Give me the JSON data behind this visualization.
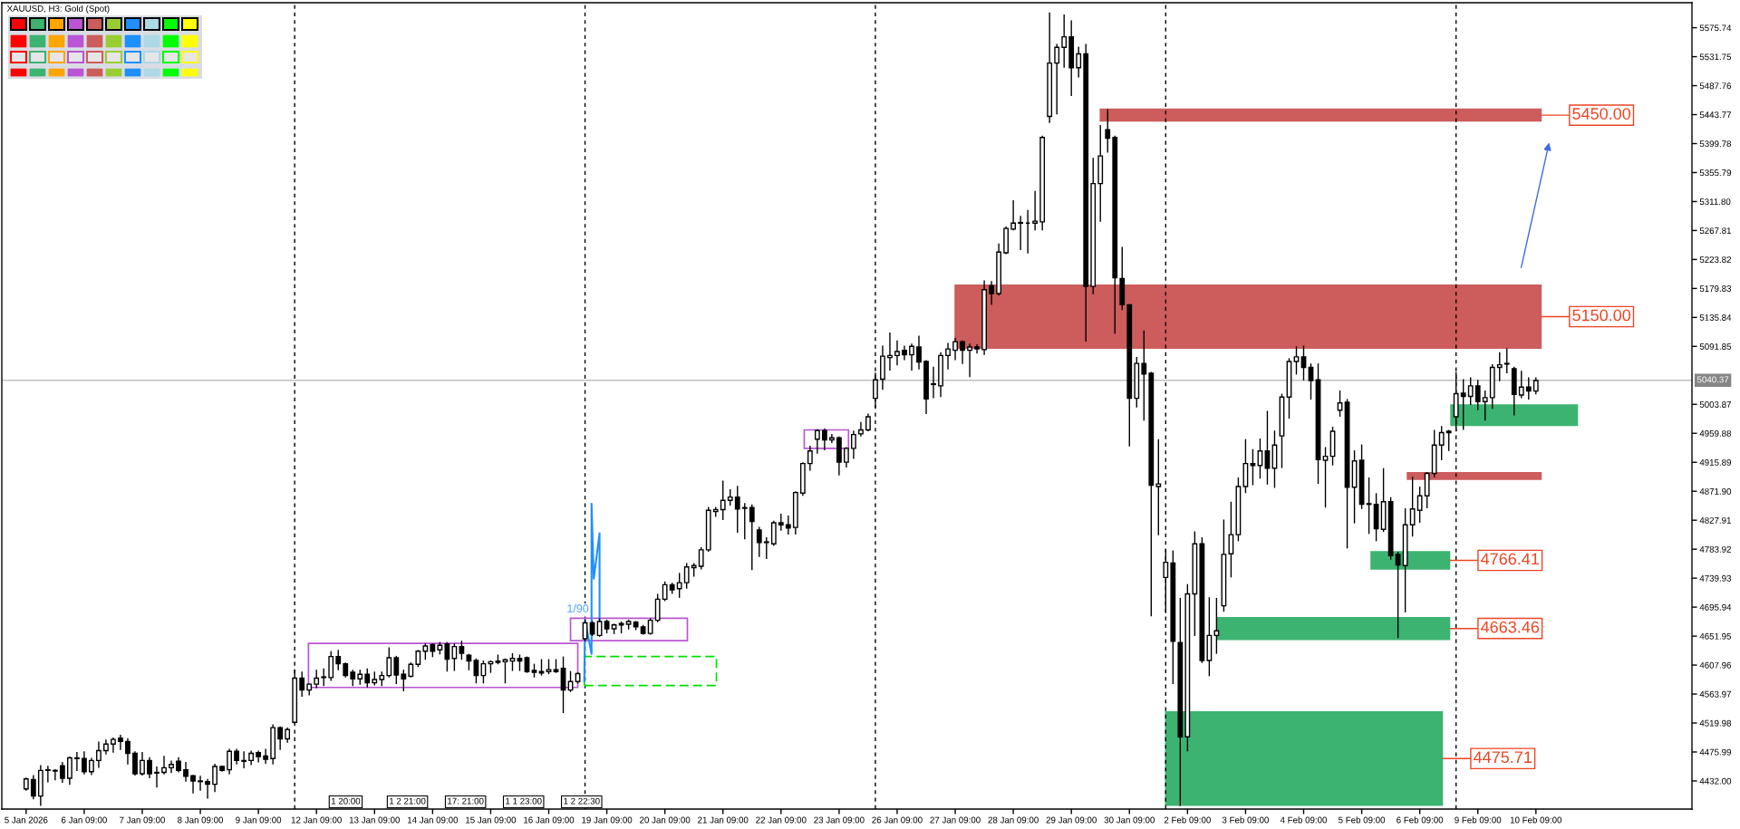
{
  "chart_data": {
    "type": "candlestick",
    "title": "XAUUSD, H3: Gold (Spot)",
    "categories": [
      "5 Jan 2026",
      null,
      null,
      null,
      null,
      null,
      null,
      null,
      "6 Jan 09:00",
      null,
      null,
      null,
      null,
      null,
      null,
      null,
      "7 Jan 09:00",
      null,
      null,
      null,
      null,
      null,
      null,
      null,
      "8 Jan 09:00",
      null,
      null,
      null,
      null,
      null,
      null,
      null,
      "9 Jan 09:00",
      null,
      null,
      null,
      null,
      null,
      null,
      null,
      "12 Jan 09:00",
      null,
      null,
      null,
      null,
      null,
      null,
      null,
      "13 Jan 09:00",
      null,
      null,
      null,
      null,
      null,
      null,
      null,
      "14 Jan 09:00",
      null,
      null,
      null,
      null,
      null,
      null,
      null,
      "15 Jan 09:00",
      null,
      null,
      null,
      null,
      null,
      null,
      null,
      "16 Jan 09:00",
      null,
      null,
      null,
      null,
      null,
      null,
      null,
      "19 Jan 09:00",
      null,
      null,
      null,
      null,
      null,
      null,
      null,
      "20 Jan 09:00",
      null,
      null,
      null,
      null,
      null,
      null,
      null,
      "21 Jan 09:00",
      null,
      null,
      null,
      null,
      null,
      null,
      null,
      "22 Jan 09:00",
      null,
      null,
      null,
      null,
      null,
      null,
      null,
      "23 Jan 09:00",
      null,
      null,
      null,
      null,
      null,
      null,
      null,
      "26 Jan 09:00",
      null,
      null,
      null,
      null,
      null,
      null,
      null,
      "27 Jan 09:00",
      null,
      null,
      null,
      null,
      null,
      null,
      null,
      "28 Jan 09:00",
      null,
      null,
      null,
      null,
      null,
      null,
      null,
      "29 Jan 09:00",
      null,
      null,
      null,
      null,
      null,
      null,
      null,
      "30 Jan 09:00",
      null,
      null,
      null,
      null,
      null,
      null,
      null,
      "2 Feb 09:00",
      null,
      null,
      null,
      null,
      null,
      null,
      null,
      "3 Feb 09:00",
      null,
      null,
      null,
      null,
      null,
      null,
      null,
      "4 Feb 09:00",
      null,
      null,
      null,
      null,
      null,
      null,
      null,
      "5 Feb 09:00",
      null,
      null,
      null,
      null,
      null,
      null,
      null,
      "6 Feb 09:00",
      null,
      null,
      null,
      null,
      null,
      null,
      null,
      "9 Feb 09:00",
      null,
      null,
      null,
      null,
      null,
      null,
      null,
      "10 Feb 09:00",
      null,
      null,
      null,
      null,
      null,
      null,
      null,
      null,
      null,
      null,
      null,
      null,
      null,
      null,
      null,
      null,
      null,
      null,
      null,
      null,
      null
    ],
    "ohlc": [
      [
        4420,
        4436,
        4418,
        4435
      ],
      [
        4434,
        4440,
        4405,
        4409
      ],
      [
        4409,
        4455,
        4395,
        4448
      ],
      [
        4448,
        4454,
        4431,
        4449
      ],
      [
        4448,
        4449,
        4434,
        4447
      ],
      [
        4455,
        4460,
        4430,
        4436
      ],
      [
        4436,
        4468,
        4427,
        4467
      ],
      [
        4467,
        4475,
        4448,
        4466
      ],
      [
        4466,
        4476,
        4443,
        4446
      ],
      [
        4446,
        4466,
        4442,
        4463
      ],
      [
        4463,
        4491,
        4453,
        4478
      ],
      [
        4478,
        4494,
        4473,
        4488
      ],
      [
        4488,
        4497,
        4476,
        4495
      ],
      [
        4497,
        4501,
        4480,
        4492
      ],
      [
        4492,
        4496,
        4458,
        4474
      ],
      [
        4474,
        4476,
        4441,
        4443
      ],
      [
        4443,
        4475,
        4441,
        4463
      ],
      [
        4463,
        4467,
        4437,
        4443
      ],
      [
        4445,
        4453,
        4423,
        4444
      ],
      [
        4445,
        4469,
        4443,
        4452
      ],
      [
        4452,
        4462,
        4445,
        4457
      ],
      [
        4462,
        4467,
        4446,
        4448
      ],
      [
        4449,
        4460,
        4432,
        4439
      ],
      [
        4440,
        4440,
        4414,
        4432
      ],
      [
        4432,
        4439,
        4418,
        4431
      ],
      [
        4431,
        4434,
        4406,
        4427
      ],
      [
        4427,
        4457,
        4416,
        4454
      ],
      [
        4454,
        4454,
        4447,
        4448
      ],
      [
        4449,
        4480,
        4443,
        4477
      ],
      [
        4477,
        4480,
        4458,
        4463
      ],
      [
        4463,
        4476,
        4452,
        4462
      ],
      [
        4463,
        4477,
        4457,
        4474
      ],
      [
        4475,
        4477,
        4461,
        4469
      ],
      [
        4470,
        4480,
        4459,
        4465
      ],
      [
        4466,
        4517,
        4458,
        4513
      ],
      [
        4513,
        4514,
        4480,
        4496
      ],
      [
        4496,
        4512,
        4491,
        4510
      ],
      [
        4521,
        4600,
        4520,
        4588
      ],
      [
        4588,
        4597,
        4561,
        4570
      ],
      [
        4570,
        4579,
        4563,
        4579
      ],
      [
        4579,
        4600,
        4574,
        4588
      ],
      [
        4590,
        4602,
        4577,
        4589
      ],
      [
        4589,
        4628,
        4585,
        4621
      ],
      [
        4621,
        4630,
        4601,
        4610
      ],
      [
        4610,
        4611,
        4590,
        4592
      ],
      [
        4597,
        4600,
        4577,
        4587
      ],
      [
        4587,
        4600,
        4579,
        4594
      ],
      [
        4594,
        4602,
        4575,
        4581
      ],
      [
        4581,
        4597,
        4578,
        4586
      ],
      [
        4586,
        4597,
        4577,
        4592
      ],
      [
        4592,
        4634,
        4590,
        4619
      ],
      [
        4619,
        4621,
        4580,
        4593
      ],
      [
        4594,
        4600,
        4569,
        4587
      ],
      [
        4591,
        4611,
        4590,
        4609
      ],
      [
        4609,
        4630,
        4606,
        4629
      ],
      [
        4629,
        4640,
        4617,
        4637
      ],
      [
        4639,
        4640,
        4621,
        4629
      ],
      [
        4631,
        4642,
        4625,
        4638
      ],
      [
        4640,
        4642,
        4599,
        4617
      ],
      [
        4618,
        4640,
        4600,
        4636
      ],
      [
        4636,
        4644,
        4617,
        4626
      ],
      [
        4623,
        4624,
        4601,
        4614
      ],
      [
        4615,
        4617,
        4581,
        4592
      ],
      [
        4592,
        4614,
        4581,
        4610
      ],
      [
        4610,
        4614,
        4597,
        4613
      ],
      [
        4614,
        4623,
        4610,
        4612
      ],
      [
        4613,
        4617,
        4581,
        4616
      ],
      [
        4614,
        4625,
        4600,
        4618
      ],
      [
        4618,
        4623,
        4600,
        4614
      ],
      [
        4619,
        4620,
        4597,
        4598
      ],
      [
        4600,
        4609,
        4590,
        4597
      ],
      [
        4598,
        4616,
        4593,
        4596
      ],
      [
        4598,
        4616,
        4595,
        4601
      ],
      [
        4601,
        4616,
        4597,
        4598
      ],
      [
        4603,
        4620,
        4536,
        4570
      ],
      [
        4570,
        4598,
        4568,
        4583
      ],
      [
        4583,
        4596,
        4581,
        4595
      ],
      [
        4648,
        4676,
        4645,
        4672
      ],
      [
        4672,
        4674,
        4653,
        4655
      ],
      [
        4653,
        4678,
        4652,
        4674
      ],
      [
        4674,
        4676,
        4657,
        4663
      ],
      [
        4663,
        4670,
        4656,
        4669
      ],
      [
        4669,
        4673,
        4657,
        4671
      ],
      [
        4670,
        4676,
        4663,
        4674
      ],
      [
        4673,
        4674,
        4662,
        4666
      ],
      [
        4666,
        4668,
        4655,
        4656
      ],
      [
        4656,
        4678,
        4655,
        4676
      ],
      [
        4676,
        4715,
        4674,
        4708
      ],
      [
        4708,
        4734,
        4706,
        4730
      ],
      [
        4730,
        4732,
        4717,
        4722
      ],
      [
        4724,
        4747,
        4711,
        4733
      ],
      [
        4733,
        4762,
        4725,
        4757
      ],
      [
        4756,
        4762,
        4743,
        4759
      ],
      [
        4758,
        4786,
        4754,
        4783
      ],
      [
        4783,
        4847,
        4781,
        4843
      ],
      [
        4841,
        4847,
        4834,
        4844
      ],
      [
        4844,
        4887,
        4829,
        4858
      ],
      [
        4858,
        4874,
        4851,
        4863
      ],
      [
        4863,
        4879,
        4810,
        4845
      ],
      [
        4847,
        4853,
        4800,
        4846
      ],
      [
        4847,
        4851,
        4753,
        4826
      ],
      [
        4813,
        4817,
        4773,
        4794
      ],
      [
        4794,
        4801,
        4770,
        4795
      ],
      [
        4792,
        4826,
        4790,
        4824
      ],
      [
        4824,
        4837,
        4813,
        4821
      ],
      [
        4821,
        4834,
        4807,
        4816
      ],
      [
        4817,
        4871,
        4807,
        4870
      ],
      [
        4869,
        4915,
        4866,
        4914
      ],
      [
        4914,
        4940,
        4904,
        4933
      ],
      [
        4951,
        4965,
        4930,
        4964
      ],
      [
        4964,
        4966,
        4935,
        4950
      ],
      [
        4950,
        4958,
        4946,
        4953
      ],
      [
        4953,
        4954,
        4897,
        4916
      ],
      [
        4916,
        4938,
        4909,
        4937
      ],
      [
        4937,
        4963,
        4922,
        4958
      ],
      [
        4959,
        4976,
        4956,
        4965
      ],
      [
        4965,
        4989,
        4964,
        4985
      ],
      [
        5013,
        5051,
        5000,
        5041
      ],
      [
        5042,
        5092,
        5027,
        5077
      ],
      [
        5075,
        5112,
        5056,
        5078
      ],
      [
        5078,
        5100,
        5064,
        5084
      ],
      [
        5086,
        5092,
        5072,
        5079
      ],
      [
        5079,
        5095,
        5056,
        5092
      ],
      [
        5091,
        5107,
        5058,
        5068
      ],
      [
        5069,
        5070,
        4990,
        5012
      ],
      [
        5035,
        5060,
        5014,
        5034
      ],
      [
        5032,
        5082,
        5016,
        5078
      ],
      [
        5078,
        5096,
        5058,
        5088
      ],
      [
        5086,
        5104,
        5072,
        5099
      ],
      [
        5099,
        5100,
        5066,
        5086
      ],
      [
        5086,
        5095,
        5046,
        5091
      ],
      [
        5091,
        5094,
        5082,
        5088
      ],
      [
        5087,
        5191,
        5080,
        5178
      ],
      [
        5184,
        5190,
        5156,
        5172
      ],
      [
        5172,
        5247,
        5170,
        5235
      ],
      [
        5234,
        5273,
        5233,
        5271
      ],
      [
        5270,
        5313,
        5269,
        5279
      ],
      [
        5279,
        5289,
        5239,
        5280
      ],
      [
        5279,
        5298,
        5234,
        5279
      ],
      [
        5279,
        5327,
        5269,
        5282
      ],
      [
        5281,
        5411,
        5269,
        5409
      ],
      [
        5441,
        5598,
        5432,
        5522
      ],
      [
        5522,
        5550,
        5445,
        5546
      ],
      [
        5546,
        5595,
        5516,
        5562
      ],
      [
        5562,
        5586,
        5473,
        5515
      ],
      [
        5515,
        5546,
        5501,
        5536
      ],
      [
        5536,
        5550,
        5100,
        5183
      ],
      [
        5183,
        5377,
        5172,
        5339
      ],
      [
        5339,
        5427,
        5282,
        5381
      ],
      [
        5421,
        5451,
        5387,
        5408
      ],
      [
        5409,
        5411,
        5112,
        5196
      ],
      [
        5195,
        5242,
        5148,
        5155
      ],
      [
        5155,
        5155,
        4941,
        5013
      ],
      [
        5013,
        5075,
        5000,
        5066
      ],
      [
        5066,
        5115,
        4980,
        5050
      ],
      [
        5051,
        5052,
        4683,
        4881
      ],
      [
        4879,
        4950,
        4806,
        4883
      ],
      [
        4741,
        4783,
        4688,
        4764
      ],
      [
        4763,
        4781,
        4580,
        4644
      ],
      [
        4642,
        4709,
        4395,
        4499
      ],
      [
        4499,
        4730,
        4478,
        4716
      ],
      [
        4716,
        4810,
        4653,
        4792
      ],
      [
        4792,
        4801,
        4612,
        4615
      ],
      [
        4615,
        4710,
        4592,
        4653
      ],
      [
        4653,
        4709,
        4626,
        4660
      ],
      [
        4698,
        4828,
        4690,
        4776
      ],
      [
        4777,
        4855,
        4742,
        4806
      ],
      [
        4806,
        4892,
        4797,
        4879
      ],
      [
        4879,
        4950,
        4870,
        4914
      ],
      [
        4914,
        4935,
        4882,
        4911
      ],
      [
        4911,
        4951,
        4892,
        4933
      ],
      [
        4933,
        4993,
        4883,
        4907
      ],
      [
        4907,
        4963,
        4878,
        4942
      ],
      [
        4956,
        5019,
        4908,
        5015
      ],
      [
        5015,
        5073,
        4983,
        5069
      ],
      [
        5069,
        5091,
        5050,
        5076
      ],
      [
        5076,
        5092,
        5041,
        5060
      ],
      [
        5060,
        5065,
        5012,
        5040
      ],
      [
        5041,
        5065,
        4884,
        4920
      ],
      [
        4919,
        4938,
        4848,
        4925
      ],
      [
        4925,
        4969,
        4912,
        4963
      ],
      [
        4995,
        5024,
        4986,
        5006
      ],
      [
        5007,
        5011,
        4786,
        4878
      ],
      [
        4878,
        4933,
        4824,
        4918
      ],
      [
        4919,
        4942,
        4846,
        4852
      ],
      [
        4853,
        4892,
        4808,
        4852
      ],
      [
        4852,
        4868,
        4797,
        4815
      ],
      [
        4814,
        4906,
        4811,
        4856
      ],
      [
        4856,
        4862,
        4769,
        4774
      ],
      [
        4776,
        4779,
        4650,
        4760
      ],
      [
        4759,
        4845,
        4689,
        4821
      ],
      [
        4821,
        4893,
        4804,
        4845
      ],
      [
        4843,
        4878,
        4825,
        4865
      ],
      [
        4865,
        4900,
        4847,
        4899
      ],
      [
        4899,
        4964,
        4894,
        4942
      ],
      [
        4942,
        4970,
        4920,
        4961
      ],
      [
        4961,
        4964,
        4934,
        4963
      ],
      [
        4985,
        5052,
        4964,
        5020
      ],
      [
        5021,
        5041,
        4966,
        5016
      ],
      [
        5016,
        5044,
        5004,
        5032
      ],
      [
        5032,
        5040,
        4996,
        5008
      ],
      [
        5008,
        5024,
        4980,
        5014
      ],
      [
        5014,
        5064,
        4998,
        5060
      ],
      [
        5060,
        5082,
        5040,
        5064
      ],
      [
        5066,
        5088,
        5052,
        5065
      ],
      [
        5058,
        5060,
        4988,
        5019
      ],
      [
        5018,
        5054,
        5014,
        5030
      ],
      [
        5030,
        5044,
        5012,
        5024
      ],
      [
        5024,
        5044,
        5020,
        5040
      ],
      null,
      null,
      null,
      null,
      null,
      null,
      null,
      null,
      null,
      null,
      null,
      null,
      null,
      null,
      null,
      null,
      null,
      null,
      null,
      null,
      null
    ],
    "ylim": [
      4389.3,
      5613.7
    ],
    "yticks": [
      {
        "value": 4432.0,
        "label": "4432.00"
      },
      4475.99,
      4519.98,
      4563.97,
      4607.96,
      4651.95,
      4695.94,
      4739.93,
      4783.92,
      4827.91,
      {
        "value": 4871.9,
        "label": "4871.90"
      },
      4915.89,
      4959.88,
      5003.87,
      5091.85,
      5135.84,
      5179.83,
      5223.82,
      5267.81,
      {
        "value": 5311.8,
        "label": "5311.80"
      },
      5355.79,
      5399.78,
      5443.77,
      5487.76,
      5531.75,
      5575.74
    ],
    "bands": [
      {
        "axis": "y",
        "from": 5433,
        "to": 5453,
        "label": "5450.00",
        "color": "#cd5c5c"
      },
      {
        "axis": "y",
        "from": 5088,
        "to": 5186,
        "label": "5150.00",
        "color": "#cd5c5c"
      },
      {
        "axis": "y",
        "from": 4889,
        "to": 4901,
        "color": "#cd5c5c"
      },
      {
        "axis": "y",
        "from": 4971,
        "to": 5004,
        "color": "#3cb371"
      },
      {
        "axis": "y",
        "from": 4753,
        "to": 4781,
        "label": "4766.41",
        "color": "#3cb371"
      },
      {
        "axis": "y",
        "from": 4646,
        "to": 4681,
        "label": "4663.46",
        "color": "#3cb371"
      },
      {
        "axis": "y",
        "from": 4394,
        "to": 4538,
        "label": "4475.71",
        "color": "#3cb371"
      }
    ],
    "ref_lines": [
      {
        "axis": "y",
        "value": 5040.37,
        "label": "5040.37",
        "color": "#c0c0c0"
      }
    ],
    "annotations": [
      "1 20:00",
      "1 2 21:00",
      "17: 21:00",
      "1 1 23:00",
      "1 2 22:30",
      "1/90"
    ]
  }
}
